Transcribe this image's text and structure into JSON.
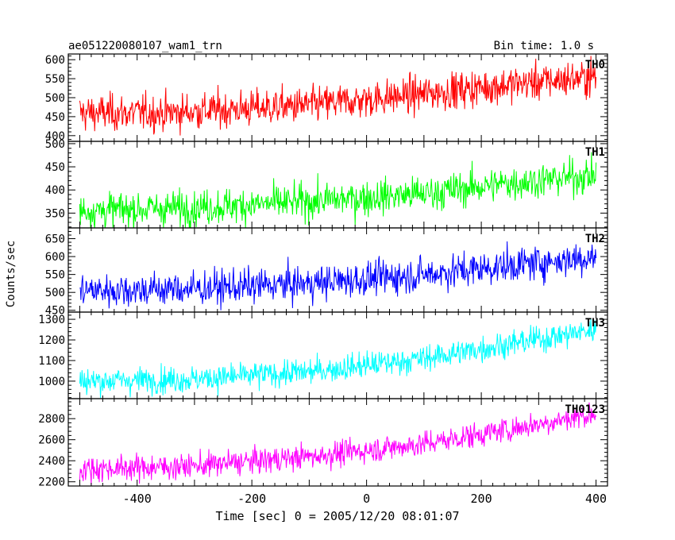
{
  "header": {
    "title_left": "ae051220080107_wam1_trn",
    "title_right": "Bin time: 1.0 s"
  },
  "chart_data": {
    "type": "line",
    "title": "ae051220080107_wam1_trn",
    "subtitle": "Bin time: 1.0 s",
    "xlabel": "Time [sec] 0 = 2005/12/20 08:01:07",
    "ylabel": "Counts/sec",
    "xlim": [
      -520,
      420
    ],
    "xticks": [
      -400,
      -200,
      0,
      200,
      400
    ],
    "x_start": -500,
    "x_end": 400,
    "bin_time": 1.0,
    "panels": [
      {
        "name": "TH0",
        "color": "#ff0000",
        "ylim": [
          385,
          615
        ],
        "yticks": [
          400,
          450,
          500,
          550,
          600
        ],
        "trend": [
          [
            -500,
            460
          ],
          [
            -350,
            460
          ],
          [
            -100,
            480
          ],
          [
            100,
            510
          ],
          [
            250,
            535
          ],
          [
            400,
            555
          ]
        ],
        "noise_sd": 24
      },
      {
        "name": "TH1",
        "color": "#00ff00",
        "ylim": [
          318,
          505
        ],
        "yticks": [
          350,
          400,
          450,
          500
        ],
        "trend": [
          [
            -500,
            355
          ],
          [
            -300,
            362
          ],
          [
            -100,
            375
          ],
          [
            100,
            392
          ],
          [
            250,
            415
          ],
          [
            400,
            432
          ]
        ],
        "noise_sd": 19
      },
      {
        "name": "TH2",
        "color": "#0000ff",
        "ylim": [
          445,
          680
        ],
        "yticks": [
          450,
          500,
          550,
          600,
          650
        ],
        "trend": [
          [
            -500,
            505
          ],
          [
            -300,
            510
          ],
          [
            -100,
            525
          ],
          [
            100,
            550
          ],
          [
            250,
            575
          ],
          [
            400,
            600
          ]
        ],
        "noise_sd": 24
      },
      {
        "name": "TH3",
        "color": "#00ffff",
        "ylim": [
          915,
          1335
        ],
        "yticks": [
          1000,
          1100,
          1200,
          1300
        ],
        "trend": [
          [
            -500,
            1000
          ],
          [
            -300,
            1010
          ],
          [
            -100,
            1045
          ],
          [
            100,
            1110
          ],
          [
            250,
            1180
          ],
          [
            400,
            1250
          ]
        ],
        "noise_sd": 32
      },
      {
        "name": "TH0123",
        "color": "#ff00ff",
        "ylim": [
          2160,
          2990
        ],
        "yticks": [
          2200,
          2400,
          2600,
          2800
        ],
        "trend": [
          [
            -500,
            2320
          ],
          [
            -300,
            2350
          ],
          [
            -100,
            2440
          ],
          [
            100,
            2560
          ],
          [
            250,
            2700
          ],
          [
            400,
            2850
          ]
        ],
        "noise_sd": 60
      }
    ]
  }
}
